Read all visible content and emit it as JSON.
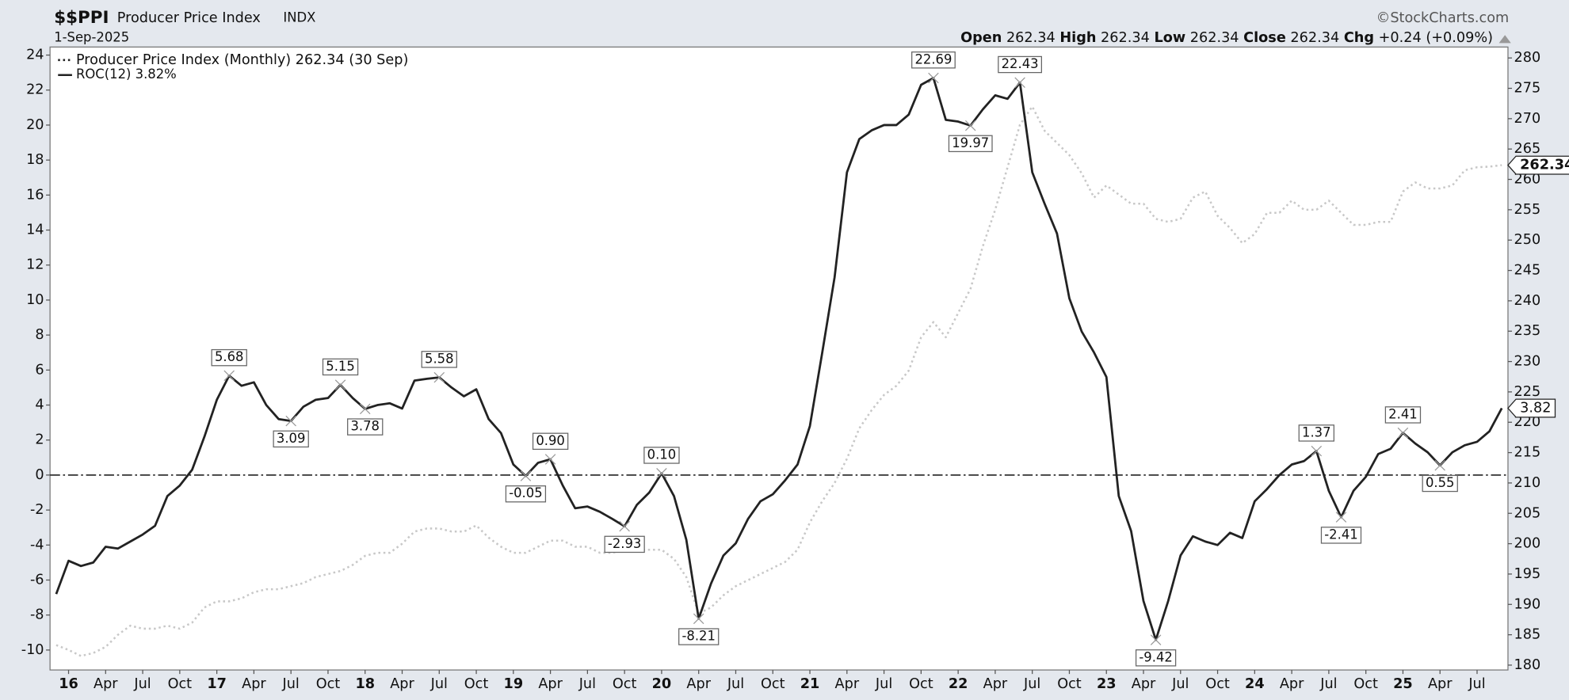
{
  "chart_data": {
    "type": "line",
    "symbol": "$$PPI",
    "title": "Producer Price Index",
    "exchange": "INDX",
    "date": "1-Sep-2025",
    "source": "©StockCharts.com",
    "quote": [
      {
        "label": "Open",
        "value": 262.34
      },
      {
        "label": "High",
        "value": 262.34
      },
      {
        "label": "Low",
        "value": 262.34
      },
      {
        "label": "Close",
        "value": 262.34
      },
      {
        "label": "Chg",
        "value": "+0.24 (+0.09%)"
      }
    ],
    "categories": [
      null,
      "16",
      null,
      null,
      "Apr",
      null,
      null,
      "Jul",
      null,
      null,
      "Oct",
      null,
      null,
      "17",
      null,
      null,
      "Apr",
      null,
      null,
      "Jul",
      null,
      null,
      "Oct",
      null,
      null,
      "18",
      null,
      null,
      "Apr",
      null,
      null,
      "Jul",
      null,
      null,
      "Oct",
      null,
      null,
      "19",
      null,
      null,
      "Apr",
      null,
      null,
      "Jul",
      null,
      null,
      "Oct",
      null,
      null,
      "20",
      null,
      null,
      "Apr",
      null,
      null,
      "Jul",
      null,
      null,
      "Oct",
      null,
      null,
      "21",
      null,
      null,
      "Apr",
      null,
      null,
      "Jul",
      null,
      null,
      "Oct",
      null,
      null,
      "22",
      null,
      null,
      "Apr",
      null,
      null,
      "Jul",
      null,
      null,
      "Oct",
      null,
      null,
      "23",
      null,
      null,
      "Apr",
      null,
      null,
      "Jul",
      null,
      null,
      "Oct",
      null,
      null,
      "24",
      null,
      null,
      "Apr",
      null,
      null,
      "Jul",
      null,
      null,
      "Oct",
      null,
      null,
      "25",
      null,
      null,
      "Apr",
      null,
      null,
      "Jul",
      null,
      null
    ],
    "series": [
      {
        "name": "Producer Price Index (Monthly) 262.34 (30 Sep)",
        "color": "#c8c8c8",
        "dash": "dotted",
        "axis": "y2",
        "values": [
          183.3,
          182.5,
          181.5,
          182,
          183,
          185,
          186.5,
          186,
          186,
          186.5,
          186,
          187,
          189.5,
          190.5,
          190.5,
          191,
          192,
          192.5,
          192.5,
          193,
          193.5,
          194.5,
          195,
          195.5,
          196.5,
          198,
          198.5,
          198.5,
          200,
          202,
          202.5,
          202.5,
          202,
          202,
          203,
          201,
          199.5,
          198.5,
          198.5,
          199.5,
          200.5,
          200.5,
          199.5,
          199.5,
          198.5,
          198.5,
          199,
          199,
          199,
          199,
          197.5,
          194.5,
          188.5,
          189.5,
          191.5,
          193,
          194,
          195,
          196,
          197,
          199,
          203.5,
          207,
          210,
          214,
          219,
          222,
          224.5,
          226,
          228.5,
          234,
          236.5,
          234,
          238,
          242,
          249,
          255,
          262,
          269,
          272,
          268,
          266,
          264,
          261,
          257,
          259,
          257.5,
          256,
          256,
          253.5,
          253,
          253.5,
          257,
          258,
          254,
          252,
          249.5,
          251,
          254.5,
          254.5,
          256.5,
          255,
          255,
          256.5,
          254.5,
          252.5,
          252.5,
          253,
          253,
          258,
          259.5,
          258.5,
          258.5,
          259,
          261.5,
          262,
          262.1,
          262.34
        ]
      },
      {
        "name": "ROC(12) 3.82%",
        "color": "#222222",
        "dash": "solid",
        "values": [
          -6.8,
          -4.9,
          -5.2,
          -5.0,
          -4.1,
          -4.2,
          -3.8,
          -3.4,
          -2.9,
          -1.2,
          -0.6,
          0.3,
          2.2,
          4.3,
          5.68,
          5.1,
          5.3,
          4.0,
          3.2,
          3.09,
          3.9,
          4.3,
          4.4,
          5.15,
          4.4,
          3.78,
          4.0,
          4.1,
          3.8,
          5.4,
          5.5,
          5.58,
          5.0,
          4.5,
          4.9,
          3.2,
          2.4,
          0.6,
          -0.05,
          0.7,
          0.9,
          -0.6,
          -1.9,
          -1.8,
          -2.1,
          -2.5,
          -2.93,
          -1.7,
          -1.0,
          0.1,
          -1.2,
          -3.7,
          -8.21,
          -6.2,
          -4.6,
          -3.9,
          -2.5,
          -1.5,
          -1.1,
          -0.3,
          0.6,
          2.8,
          7.0,
          11.3,
          17.3,
          19.2,
          19.7,
          20.0,
          20.0,
          20.6,
          22.3,
          22.69,
          20.3,
          20.2,
          19.97,
          20.9,
          21.7,
          21.5,
          22.43,
          17.3,
          15.5,
          13.8,
          10.1,
          8.2,
          7.0,
          5.6,
          -1.2,
          -3.2,
          -7.2,
          -9.42,
          -7.2,
          -4.6,
          -3.5,
          -3.8,
          -4.0,
          -3.3,
          -3.6,
          -1.5,
          -0.8,
          0.0,
          0.6,
          0.8,
          1.37,
          -0.9,
          -2.41,
          -0.9,
          -0.1,
          1.2,
          1.5,
          2.41,
          1.8,
          1.3,
          0.55,
          1.3,
          1.7,
          1.9,
          2.5,
          3.82
        ],
        "value_labels": [
          null,
          null,
          null,
          null,
          null,
          null,
          null,
          null,
          null,
          null,
          null,
          null,
          null,
          null,
          "5.68",
          null,
          null,
          null,
          null,
          "3.09",
          null,
          null,
          null,
          "5.15",
          null,
          "3.78",
          null,
          null,
          null,
          null,
          null,
          "5.58",
          null,
          null,
          null,
          null,
          null,
          null,
          "-0.05",
          null,
          "0.90",
          null,
          null,
          null,
          null,
          null,
          "-2.93",
          null,
          null,
          "0.10",
          null,
          null,
          "-8.21",
          null,
          null,
          null,
          null,
          null,
          null,
          null,
          null,
          null,
          null,
          null,
          null,
          null,
          null,
          null,
          null,
          null,
          null,
          "22.69",
          null,
          null,
          "19.97",
          null,
          null,
          null,
          "22.43",
          null,
          null,
          null,
          null,
          null,
          null,
          null,
          null,
          null,
          null,
          "-9.42",
          null,
          null,
          null,
          null,
          null,
          null,
          null,
          null,
          null,
          null,
          null,
          null,
          "1.37",
          null,
          "-2.41",
          null,
          null,
          null,
          null,
          "2.41",
          null,
          null,
          "0.55",
          null,
          null,
          null,
          null,
          null
        ]
      }
    ],
    "ylim": [
      -11.14,
      24.46
    ],
    "yticks": [
      -10,
      -8,
      -6,
      -4,
      -2,
      0,
      2,
      4,
      6,
      8,
      10,
      12,
      14,
      16,
      18,
      20,
      22,
      24
    ],
    "y2lim": [
      179.2,
      281.8
    ],
    "y2ticks": [
      180,
      185,
      190,
      195,
      200,
      205,
      210,
      215,
      220,
      225,
      230,
      235,
      240,
      245,
      250,
      255,
      260,
      265,
      270,
      275,
      280
    ],
    "reference_lines": [
      0
    ],
    "grid": false,
    "legend": "top-left"
  }
}
